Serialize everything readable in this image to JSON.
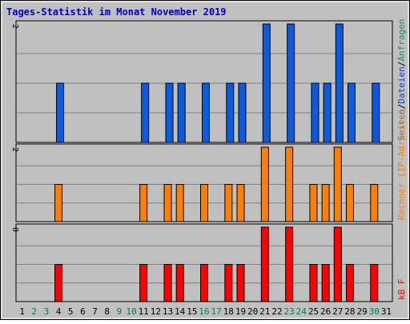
{
  "chart_data": {
    "type": "bar",
    "title": "Tages-Statistik im Monat November 2019",
    "x": [
      1,
      2,
      3,
      4,
      5,
      6,
      7,
      8,
      9,
      10,
      11,
      12,
      13,
      14,
      15,
      16,
      17,
      18,
      19,
      20,
      21,
      22,
      23,
      24,
      25,
      26,
      27,
      28,
      29,
      30,
      31
    ],
    "weekend_days": [
      2,
      3,
      9,
      10,
      16,
      17,
      23,
      24,
      30
    ],
    "panels": [
      {
        "id": "top",
        "ylim": [
          0,
          2
        ],
        "ytick_label": "2",
        "series": [
          {
            "name": "Anfragen",
            "color": "#000000",
            "values": []
          },
          {
            "name": "Dateien",
            "color": "#0a5bde",
            "values": [
              0,
              0,
              0,
              1,
              0,
              0,
              0,
              0,
              0,
              0,
              1,
              0,
              1,
              1,
              0,
              1,
              0,
              1,
              1,
              0,
              2,
              0,
              2,
              0,
              1,
              1,
              2,
              1,
              0,
              1,
              0
            ]
          }
        ],
        "right_label_parts": [
          {
            "text": "Seiten",
            "color": "#0a8fbf"
          },
          {
            "text": "/",
            "color": "#000000"
          },
          {
            "text": "Dateien",
            "color": "#1040e0"
          },
          {
            "text": "/",
            "color": "#000000"
          },
          {
            "text": "Anfragen",
            "color": "#22886a"
          }
        ]
      },
      {
        "id": "middle",
        "ylim": [
          0,
          2
        ],
        "ytick_label": "2",
        "series": [
          {
            "name": "Rechner",
            "color": "#ff8000",
            "values": [
              0,
              0,
              0,
              1,
              0,
              0,
              0,
              0,
              0,
              0,
              1,
              0,
              1,
              1,
              0,
              1,
              0,
              1,
              1,
              0,
              2,
              0,
              2,
              0,
              1,
              1,
              2,
              1,
              0,
              1,
              0
            ]
          }
        ],
        "right_label_parts": [
          {
            "text": "Rechner (IP-Adressen)",
            "color": "#ff8000"
          }
        ]
      },
      {
        "id": "bottom",
        "ylim": [
          0,
          2
        ],
        "ytick_label": "0",
        "series": [
          {
            "name": "kB F",
            "color": "#ff0000",
            "values": [
              0,
              0,
              0,
              1,
              0,
              0,
              0,
              0,
              0,
              0,
              1,
              0,
              1,
              1,
              0,
              1,
              0,
              1,
              1,
              0,
              2,
              0,
              2,
              0,
              1,
              1,
              2,
              1,
              0,
              1,
              0
            ]
          }
        ],
        "right_label_parts": [
          {
            "text": "kB F",
            "color": "#ff0000"
          }
        ]
      }
    ],
    "colors": {
      "title": "#0000c0",
      "background": "#c0c0c0",
      "weekday_label": "#000000",
      "weekend_label": "#008040",
      "grid": "#808080"
    }
  }
}
